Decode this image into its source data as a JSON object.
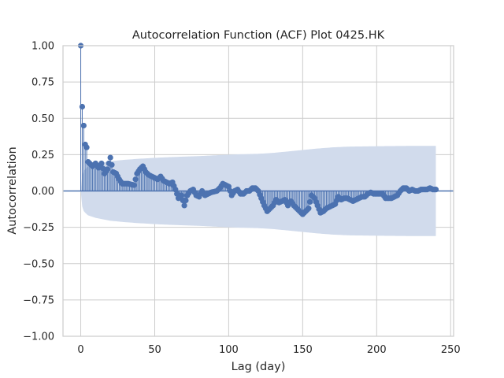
{
  "chart_data": {
    "type": "scatter",
    "title": "Autocorrelation Function (ACF) Plot 0425.HK",
    "xlabel": "Lag (day)",
    "ylabel": "Autocorrelation",
    "xlim": [
      -12,
      252
    ],
    "ylim": [
      -1.0,
      1.0
    ],
    "xticks": [
      0,
      50,
      100,
      150,
      200,
      250
    ],
    "xtick_labels": [
      "0",
      "50",
      "100",
      "150",
      "200",
      "250"
    ],
    "yticks": [
      -1.0,
      -0.75,
      -0.5,
      -0.25,
      0.0,
      0.25,
      0.5,
      0.75,
      1.0
    ],
    "ytick_labels": [
      "−1.00",
      "−0.75",
      "−0.50",
      "−0.25",
      "0.00",
      "0.25",
      "0.50",
      "0.75",
      "1.00"
    ],
    "grid": true,
    "colors": {
      "series": "#4c72b0",
      "band": "#d1dbec",
      "grid": "#cccccc",
      "frame": "#cccccc"
    },
    "confidence_band_anchors": [
      [
        0,
        0
      ],
      [
        1,
        0.107
      ],
      [
        2,
        0.138
      ],
      [
        3,
        0.15
      ],
      [
        4,
        0.16
      ],
      [
        5,
        0.168
      ],
      [
        8,
        0.178
      ],
      [
        10,
        0.185
      ],
      [
        15,
        0.195
      ],
      [
        20,
        0.205
      ],
      [
        30,
        0.215
      ],
      [
        40,
        0.222
      ],
      [
        50,
        0.228
      ],
      [
        60,
        0.233
      ],
      [
        80,
        0.24
      ],
      [
        100,
        0.25
      ],
      [
        120,
        0.256
      ],
      [
        130,
        0.262
      ],
      [
        140,
        0.272
      ],
      [
        150,
        0.282
      ],
      [
        160,
        0.292
      ],
      [
        170,
        0.3
      ],
      [
        180,
        0.305
      ],
      [
        200,
        0.308
      ],
      [
        220,
        0.31
      ],
      [
        240,
        0.31
      ]
    ],
    "acf_anchors": [
      [
        0,
        1.0
      ],
      [
        1,
        0.58
      ],
      [
        2,
        0.45
      ],
      [
        3,
        0.32
      ],
      [
        4,
        0.3
      ],
      [
        5,
        0.2
      ],
      [
        6,
        0.19
      ],
      [
        8,
        0.17
      ],
      [
        10,
        0.19
      ],
      [
        12,
        0.16
      ],
      [
        14,
        0.19
      ],
      [
        16,
        0.12
      ],
      [
        18,
        0.15
      ],
      [
        20,
        0.23
      ],
      [
        22,
        0.13
      ],
      [
        24,
        0.12
      ],
      [
        26,
        0.08
      ],
      [
        28,
        0.05
      ],
      [
        32,
        0.05
      ],
      [
        36,
        0.04
      ],
      [
        38,
        0.12
      ],
      [
        40,
        0.15
      ],
      [
        42,
        0.17
      ],
      [
        44,
        0.13
      ],
      [
        46,
        0.11
      ],
      [
        48,
        0.1
      ],
      [
        50,
        0.09
      ],
      [
        52,
        0.08
      ],
      [
        54,
        0.1
      ],
      [
        56,
        0.07
      ],
      [
        58,
        0.06
      ],
      [
        60,
        0.05
      ],
      [
        62,
        0.06
      ],
      [
        64,
        0.01
      ],
      [
        66,
        -0.05
      ],
      [
        68,
        -0.03
      ],
      [
        70,
        -0.1
      ],
      [
        72,
        -0.03
      ],
      [
        74,
        0.0
      ],
      [
        76,
        0.01
      ],
      [
        78,
        -0.03
      ],
      [
        80,
        -0.04
      ],
      [
        82,
        0.0
      ],
      [
        84,
        -0.03
      ],
      [
        86,
        -0.02
      ],
      [
        88,
        -0.01
      ],
      [
        92,
        0.0
      ],
      [
        94,
        0.02
      ],
      [
        96,
        0.05
      ],
      [
        98,
        0.04
      ],
      [
        100,
        0.03
      ],
      [
        102,
        -0.03
      ],
      [
        104,
        0.0
      ],
      [
        106,
        0.01
      ],
      [
        108,
        -0.02
      ],
      [
        110,
        -0.02
      ],
      [
        112,
        0.0
      ],
      [
        114,
        0.0
      ],
      [
        116,
        0.02
      ],
      [
        118,
        0.02
      ],
      [
        120,
        0.0
      ],
      [
        122,
        -0.05
      ],
      [
        124,
        -0.1
      ],
      [
        126,
        -0.14
      ],
      [
        128,
        -0.12
      ],
      [
        130,
        -0.1
      ],
      [
        132,
        -0.06
      ],
      [
        134,
        -0.08
      ],
      [
        136,
        -0.07
      ],
      [
        138,
        -0.06
      ],
      [
        140,
        -0.1
      ],
      [
        142,
        -0.07
      ],
      [
        144,
        -0.1
      ],
      [
        146,
        -0.12
      ],
      [
        148,
        -0.14
      ],
      [
        150,
        -0.16
      ],
      [
        152,
        -0.14
      ],
      [
        154,
        -0.12
      ],
      [
        156,
        -0.03
      ],
      [
        158,
        -0.05
      ],
      [
        160,
        -0.1
      ],
      [
        162,
        -0.15
      ],
      [
        164,
        -0.14
      ],
      [
        166,
        -0.12
      ],
      [
        168,
        -0.11
      ],
      [
        170,
        -0.1
      ],
      [
        172,
        -0.09
      ],
      [
        174,
        -0.04
      ],
      [
        176,
        -0.06
      ],
      [
        178,
        -0.05
      ],
      [
        180,
        -0.05
      ],
      [
        182,
        -0.06
      ],
      [
        184,
        -0.07
      ],
      [
        186,
        -0.06
      ],
      [
        188,
        -0.05
      ],
      [
        190,
        -0.04
      ],
      [
        192,
        -0.04
      ],
      [
        194,
        -0.02
      ],
      [
        196,
        -0.01
      ],
      [
        198,
        -0.02
      ],
      [
        200,
        -0.02
      ],
      [
        202,
        -0.02
      ],
      [
        204,
        -0.02
      ],
      [
        206,
        -0.05
      ],
      [
        208,
        -0.05
      ],
      [
        210,
        -0.05
      ],
      [
        212,
        -0.04
      ],
      [
        214,
        -0.03
      ],
      [
        216,
        0.0
      ],
      [
        218,
        0.02
      ],
      [
        220,
        0.02
      ],
      [
        222,
        0.0
      ],
      [
        224,
        0.01
      ],
      [
        226,
        0.0
      ],
      [
        228,
        0.0
      ],
      [
        230,
        0.01
      ],
      [
        232,
        0.01
      ],
      [
        234,
        0.01
      ],
      [
        236,
        0.02
      ],
      [
        238,
        0.01
      ],
      [
        240,
        0.01
      ]
    ]
  }
}
